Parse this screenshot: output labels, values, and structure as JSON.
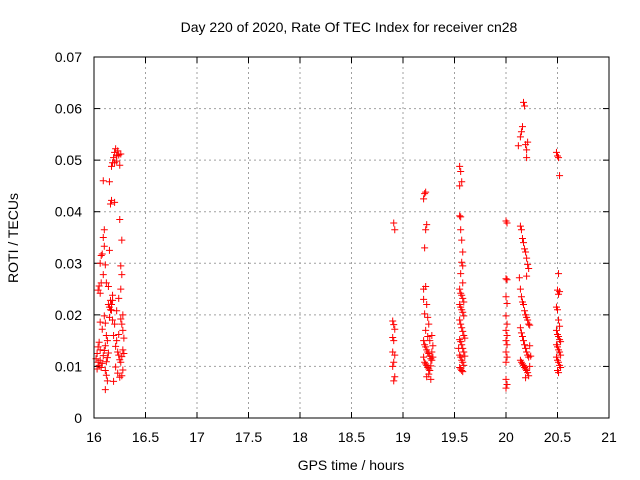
{
  "chart_data": {
    "type": "scatter",
    "title": "Day 220 of 2020, Rate Of TEC Index for receiver cn28",
    "xlabel": "GPS time / hours",
    "ylabel": "ROTI / TECUs",
    "xlim": [
      16,
      21
    ],
    "ylim": [
      0,
      0.07
    ],
    "xticks": [
      "16",
      "16.5",
      "17",
      "17.5",
      "18",
      "18.5",
      "19",
      "19.5",
      "20",
      "20.5",
      "21"
    ],
    "yticks": [
      "0",
      "0.01",
      "0.02",
      "0.03",
      "0.04",
      "0.05",
      "0.06",
      "0.07"
    ],
    "grid": true,
    "marker": "+",
    "color": "#ff0000",
    "series": [
      {
        "name": "ROTI",
        "points": [
          [
            16.02,
            0.0115
          ],
          [
            16.03,
            0.0095
          ],
          [
            16.03,
            0.0125
          ],
          [
            16.04,
            0.0138
          ],
          [
            16.04,
            0.0108
          ],
          [
            16.05,
            0.0102
          ],
          [
            16.05,
            0.0147
          ],
          [
            16.06,
            0.0132
          ],
          [
            16.06,
            0.0112
          ],
          [
            16.07,
            0.0098
          ],
          [
            16.08,
            0.0106
          ],
          [
            16.09,
            0.0121
          ],
          [
            16.1,
            0.0131
          ],
          [
            16.11,
            0.0092
          ],
          [
            16.12,
            0.0109
          ],
          [
            16.04,
            0.0248
          ],
          [
            16.05,
            0.0256
          ],
          [
            16.06,
            0.0242
          ],
          [
            16.07,
            0.0262
          ],
          [
            16.06,
            0.03
          ],
          [
            16.07,
            0.0315
          ],
          [
            16.08,
            0.0318
          ],
          [
            16.09,
            0.035
          ],
          [
            16.1,
            0.0365
          ],
          [
            16.1,
            0.0333
          ],
          [
            16.11,
            0.0297
          ],
          [
            16.09,
            0.0278
          ],
          [
            16.12,
            0.0262
          ],
          [
            16.06,
            0.0186
          ],
          [
            16.08,
            0.0172
          ],
          [
            16.1,
            0.0198
          ],
          [
            16.11,
            0.0184
          ],
          [
            16.12,
            0.016
          ],
          [
            16.09,
            0.046
          ],
          [
            16.12,
            0.0083
          ],
          [
            16.11,
            0.0055
          ],
          [
            16.13,
            0.0072
          ],
          [
            16.13,
            0.0117
          ],
          [
            16.14,
            0.0126
          ],
          [
            16.15,
            0.0195
          ],
          [
            16.15,
            0.0215
          ],
          [
            16.16,
            0.0228
          ],
          [
            16.17,
            0.0209
          ],
          [
            16.17,
            0.022
          ],
          [
            16.18,
            0.0228
          ],
          [
            16.18,
            0.019
          ],
          [
            16.15,
            0.0325
          ],
          [
            16.14,
            0.0255
          ],
          [
            16.16,
            0.0415
          ],
          [
            16.17,
            0.0422
          ],
          [
            16.15,
            0.0458
          ],
          [
            16.17,
            0.0488
          ],
          [
            16.18,
            0.0495
          ],
          [
            16.19,
            0.0505
          ],
          [
            16.2,
            0.0495
          ],
          [
            16.2,
            0.0515
          ],
          [
            16.21,
            0.0522
          ],
          [
            16.22,
            0.0498
          ],
          [
            16.23,
            0.0518
          ],
          [
            16.24,
            0.051
          ],
          [
            16.25,
            0.049
          ],
          [
            16.26,
            0.0512
          ],
          [
            16.22,
            0.0508
          ],
          [
            16.2,
            0.0418
          ],
          [
            16.25,
            0.0385
          ],
          [
            16.27,
            0.0345
          ],
          [
            16.26,
            0.0295
          ],
          [
            16.27,
            0.0278
          ],
          [
            16.26,
            0.025
          ],
          [
            16.24,
            0.0232
          ],
          [
            16.22,
            0.0208
          ],
          [
            16.2,
            0.0182
          ],
          [
            16.19,
            0.016
          ],
          [
            16.21,
            0.0139
          ],
          [
            16.23,
            0.0128
          ],
          [
            16.24,
            0.0122
          ],
          [
            16.25,
            0.0113
          ],
          [
            16.26,
            0.0108
          ],
          [
            16.27,
            0.0119
          ],
          [
            16.28,
            0.0132
          ],
          [
            16.29,
            0.0125
          ],
          [
            16.21,
            0.0099
          ],
          [
            16.23,
            0.0087
          ],
          [
            16.25,
            0.0079
          ],
          [
            16.27,
            0.0082
          ],
          [
            16.28,
            0.0093
          ],
          [
            16.19,
            0.0071
          ],
          [
            16.29,
            0.0155
          ],
          [
            16.28,
            0.017
          ],
          [
            16.27,
            0.0182
          ],
          [
            16.26,
            0.0192
          ],
          [
            16.28,
            0.02
          ],
          [
            16.22,
            0.015
          ],
          [
            16.24,
            0.0162
          ],
          [
            16.14,
            0.022
          ],
          [
            16.16,
            0.021
          ],
          [
            16.18,
            0.0238
          ],
          [
            16.13,
            0.015
          ],
          [
            16.11,
            0.014
          ],
          [
            18.91,
            0.0378
          ],
          [
            18.92,
            0.0365
          ],
          [
            18.9,
            0.0188
          ],
          [
            18.91,
            0.0181
          ],
          [
            18.92,
            0.0172
          ],
          [
            18.9,
            0.0156
          ],
          [
            18.91,
            0.015
          ],
          [
            18.9,
            0.0128
          ],
          [
            18.92,
            0.0122
          ],
          [
            18.91,
            0.0108
          ],
          [
            18.9,
            0.01
          ],
          [
            18.92,
            0.008
          ],
          [
            18.91,
            0.0072
          ],
          [
            19.2,
            0.0425
          ],
          [
            19.21,
            0.0435
          ],
          [
            19.22,
            0.0438
          ],
          [
            19.23,
            0.0375
          ],
          [
            19.22,
            0.0365
          ],
          [
            19.21,
            0.033
          ],
          [
            19.2,
            0.025
          ],
          [
            19.22,
            0.0255
          ],
          [
            19.2,
            0.023
          ],
          [
            19.23,
            0.022
          ],
          [
            19.21,
            0.0202
          ],
          [
            19.24,
            0.0195
          ],
          [
            19.25,
            0.0182
          ],
          [
            19.22,
            0.017
          ],
          [
            19.24,
            0.0158
          ],
          [
            19.2,
            0.015
          ],
          [
            19.21,
            0.0142
          ],
          [
            19.22,
            0.0138
          ],
          [
            19.23,
            0.0132
          ],
          [
            19.24,
            0.0128
          ],
          [
            19.25,
            0.0125
          ],
          [
            19.26,
            0.012
          ],
          [
            19.27,
            0.0115
          ],
          [
            19.28,
            0.0112
          ],
          [
            19.2,
            0.0118
          ],
          [
            19.21,
            0.0108
          ],
          [
            19.22,
            0.0105
          ],
          [
            19.23,
            0.0102
          ],
          [
            19.24,
            0.0098
          ],
          [
            19.25,
            0.0095
          ],
          [
            19.26,
            0.0092
          ],
          [
            19.27,
            0.0101
          ],
          [
            19.28,
            0.0128
          ],
          [
            19.25,
            0.0085
          ],
          [
            19.23,
            0.008
          ],
          [
            19.27,
            0.0075
          ],
          [
            19.29,
            0.0118
          ],
          [
            19.29,
            0.014
          ],
          [
            19.26,
            0.015
          ],
          [
            19.28,
            0.016
          ],
          [
            19.55,
            0.0488
          ],
          [
            19.56,
            0.0478
          ],
          [
            19.55,
            0.045
          ],
          [
            19.57,
            0.0458
          ],
          [
            19.56,
            0.039
          ],
          [
            19.55,
            0.0392
          ],
          [
            19.56,
            0.0365
          ],
          [
            19.57,
            0.0345
          ],
          [
            19.58,
            0.0322
          ],
          [
            19.57,
            0.0302
          ],
          [
            19.58,
            0.0295
          ],
          [
            19.56,
            0.028
          ],
          [
            19.58,
            0.0262
          ],
          [
            19.55,
            0.025
          ],
          [
            19.56,
            0.0242
          ],
          [
            19.57,
            0.0238
          ],
          [
            19.58,
            0.0232
          ],
          [
            19.59,
            0.0225
          ],
          [
            19.55,
            0.022
          ],
          [
            19.56,
            0.0215
          ],
          [
            19.57,
            0.021
          ],
          [
            19.58,
            0.0205
          ],
          [
            19.59,
            0.0198
          ],
          [
            19.55,
            0.019
          ],
          [
            19.56,
            0.0182
          ],
          [
            19.57,
            0.0175
          ],
          [
            19.58,
            0.0168
          ],
          [
            19.59,
            0.016
          ],
          [
            19.55,
            0.0152
          ],
          [
            19.56,
            0.0148
          ],
          [
            19.57,
            0.0142
          ],
          [
            19.58,
            0.0135
          ],
          [
            19.59,
            0.0128
          ],
          [
            19.55,
            0.0122
          ],
          [
            19.56,
            0.0118
          ],
          [
            19.57,
            0.0112
          ],
          [
            19.58,
            0.0108
          ],
          [
            19.59,
            0.0102
          ],
          [
            19.55,
            0.0098
          ],
          [
            19.56,
            0.0095
          ],
          [
            19.57,
            0.0092
          ],
          [
            19.58,
            0.009
          ],
          [
            19.6,
            0.0155
          ],
          [
            19.6,
            0.012
          ],
          [
            19.54,
            0.0135
          ],
          [
            20,
            0.0382
          ],
          [
            20.01,
            0.0378
          ],
          [
            20,
            0.027
          ],
          [
            20.01,
            0.0268
          ],
          [
            20,
            0.0235
          ],
          [
            20.01,
            0.0222
          ],
          [
            20,
            0.0198
          ],
          [
            20.01,
            0.0182
          ],
          [
            20,
            0.017
          ],
          [
            20.01,
            0.016
          ],
          [
            20,
            0.015
          ],
          [
            20.01,
            0.0142
          ],
          [
            20,
            0.0128
          ],
          [
            20.01,
            0.0118
          ],
          [
            20,
            0.0108
          ],
          [
            20,
            0.0075
          ],
          [
            20.01,
            0.0065
          ],
          [
            20,
            0.0058
          ],
          [
            20.12,
            0.0528
          ],
          [
            20.15,
            0.0555
          ],
          [
            20.16,
            0.0565
          ],
          [
            20.14,
            0.0545
          ],
          [
            20.17,
            0.0612
          ],
          [
            20.18,
            0.0605
          ],
          [
            20.19,
            0.053
          ],
          [
            20.2,
            0.052
          ],
          [
            20.21,
            0.0535
          ],
          [
            20.2,
            0.0505
          ],
          [
            20.14,
            0.0372
          ],
          [
            20.15,
            0.0365
          ],
          [
            20.16,
            0.0348
          ],
          [
            20.17,
            0.034
          ],
          [
            20.18,
            0.0328
          ],
          [
            20.19,
            0.0322
          ],
          [
            20.2,
            0.031
          ],
          [
            20.21,
            0.0298
          ],
          [
            20.22,
            0.029
          ],
          [
            20.2,
            0.0275
          ],
          [
            20.13,
            0.0272
          ],
          [
            20.14,
            0.025
          ],
          [
            20.15,
            0.0235
          ],
          [
            20.16,
            0.0225
          ],
          [
            20.17,
            0.022
          ],
          [
            20.18,
            0.0208
          ],
          [
            20.19,
            0.02
          ],
          [
            20.2,
            0.0195
          ],
          [
            20.21,
            0.019
          ],
          [
            20.22,
            0.0182
          ],
          [
            20.14,
            0.0175
          ],
          [
            20.15,
            0.0165
          ],
          [
            20.16,
            0.0158
          ],
          [
            20.17,
            0.015
          ],
          [
            20.18,
            0.0142
          ],
          [
            20.19,
            0.0135
          ],
          [
            20.2,
            0.0128
          ],
          [
            20.21,
            0.0122
          ],
          [
            20.22,
            0.0118
          ],
          [
            20.14,
            0.0112
          ],
          [
            20.15,
            0.0108
          ],
          [
            20.16,
            0.0105
          ],
          [
            20.17,
            0.0102
          ],
          [
            20.18,
            0.0098
          ],
          [
            20.19,
            0.0095
          ],
          [
            20.2,
            0.0092
          ],
          [
            20.21,
            0.0088
          ],
          [
            20.22,
            0.0082
          ],
          [
            20.19,
            0.0078
          ],
          [
            20.23,
            0.01
          ],
          [
            20.23,
            0.014
          ],
          [
            20.23,
            0.018
          ],
          [
            20.24,
            0.012
          ],
          [
            20.49,
            0.0515
          ],
          [
            20.5,
            0.0508
          ],
          [
            20.51,
            0.0505
          ],
          [
            20.52,
            0.047
          ],
          [
            20.51,
            0.028
          ],
          [
            20.5,
            0.0248
          ],
          [
            20.52,
            0.0245
          ],
          [
            20.51,
            0.024
          ],
          [
            20.49,
            0.0215
          ],
          [
            20.5,
            0.021
          ],
          [
            20.51,
            0.019
          ],
          [
            20.52,
            0.0178
          ],
          [
            20.49,
            0.017
          ],
          [
            20.5,
            0.0162
          ],
          [
            20.51,
            0.0158
          ],
          [
            20.52,
            0.0152
          ],
          [
            20.53,
            0.0148
          ],
          [
            20.49,
            0.0142
          ],
          [
            20.5,
            0.0138
          ],
          [
            20.51,
            0.0132
          ],
          [
            20.52,
            0.0128
          ],
          [
            20.53,
            0.0122
          ],
          [
            20.49,
            0.0118
          ],
          [
            20.5,
            0.0112
          ],
          [
            20.51,
            0.0108
          ],
          [
            20.52,
            0.0102
          ],
          [
            20.53,
            0.0098
          ],
          [
            20.5,
            0.0092
          ],
          [
            20.51,
            0.0088
          ]
        ]
      }
    ]
  }
}
